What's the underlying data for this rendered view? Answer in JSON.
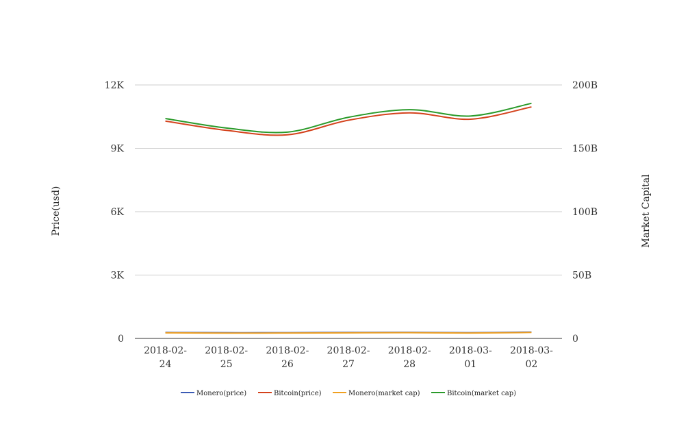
{
  "chart_data": {
    "type": "line",
    "categories": [
      "2018-02-24",
      "2018-02-25",
      "2018-02-26",
      "2018-02-27",
      "2018-02-28",
      "2018-03-01",
      "2018-03-02"
    ],
    "category_lines": [
      [
        "2018-02-",
        "24"
      ],
      [
        "2018-02-",
        "25"
      ],
      [
        "2018-02-",
        "26"
      ],
      [
        "2018-02-",
        "27"
      ],
      [
        "2018-02-",
        "28"
      ],
      [
        "2018-03-",
        "01"
      ],
      [
        "2018-03-",
        "02"
      ]
    ],
    "y_left": {
      "label": "Price(usd)",
      "ylim": [
        0,
        12000
      ],
      "ticks": [
        0,
        3000,
        6000,
        9000,
        12000
      ],
      "tick_labels": [
        "0",
        "3K",
        "6K",
        "9K",
        "12K"
      ]
    },
    "y_right": {
      "label": "Market Capital",
      "ylim": [
        0,
        200000000000
      ],
      "ticks": [
        0,
        50000000000,
        100000000000,
        150000000000,
        200000000000
      ],
      "tick_labels": [
        "0",
        "50B",
        "100B",
        "150B",
        "200B"
      ]
    },
    "grid": true,
    "legend_position": "bottom",
    "series": [
      {
        "name": "Monero(price)",
        "axis": "left",
        "color": "#3b5bb5",
        "values": [
          283,
          270,
          272,
          283,
          288,
          272,
          301
        ]
      },
      {
        "name": "Bitcoin(price)",
        "axis": "left",
        "color": "#d4421c",
        "values": [
          10290,
          9850,
          9640,
          10330,
          10680,
          10380,
          10960
        ]
      },
      {
        "name": "Monero(market cap)",
        "axis": "right",
        "color": "#f0a020",
        "values": [
          4400000000,
          4200000000,
          4250000000,
          4400000000,
          4500000000,
          4250000000,
          4700000000
        ]
      },
      {
        "name": "Bitcoin(market cap)",
        "axis": "right",
        "color": "#2a9a2a",
        "values": [
          173500000000,
          166000000000,
          162800000000,
          174500000000,
          180500000000,
          175500000000,
          185500000000
        ]
      }
    ]
  }
}
